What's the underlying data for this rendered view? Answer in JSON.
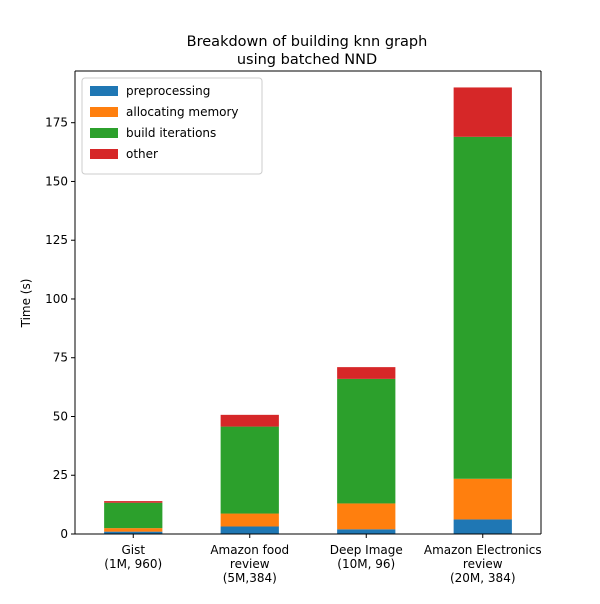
{
  "chart_data": {
    "type": "bar",
    "stacked": true,
    "title_lines": [
      "Breakdown of building knn graph",
      "using batched NND"
    ],
    "xlabel": "",
    "ylabel": "Time (s)",
    "ylim": [
      0,
      197
    ],
    "yticks": [
      0,
      25,
      50,
      75,
      100,
      125,
      150,
      175
    ],
    "grid": false,
    "legend_position": "top-left",
    "categories": [
      [
        "Gist",
        "(1M, 960)"
      ],
      [
        "Amazon food",
        "review",
        "(5M,384)"
      ],
      [
        "Deep Image",
        "(10M, 96)"
      ],
      [
        "Amazon Electronics",
        "review",
        "(20M, 384)"
      ]
    ],
    "series": [
      {
        "name": "preprocessing",
        "color": "#1f77b4",
        "values": [
          1.0,
          3.2,
          2.0,
          6.2
        ]
      },
      {
        "name": "allocating memory",
        "color": "#ff7f0e",
        "values": [
          1.5,
          5.5,
          11.0,
          17.3
        ]
      },
      {
        "name": "build iterations",
        "color": "#2ca02c",
        "values": [
          10.8,
          37.0,
          53.0,
          145.5
        ]
      },
      {
        "name": "other",
        "color": "#d62728",
        "values": [
          0.7,
          5.0,
          5.0,
          21.0
        ]
      }
    ]
  }
}
